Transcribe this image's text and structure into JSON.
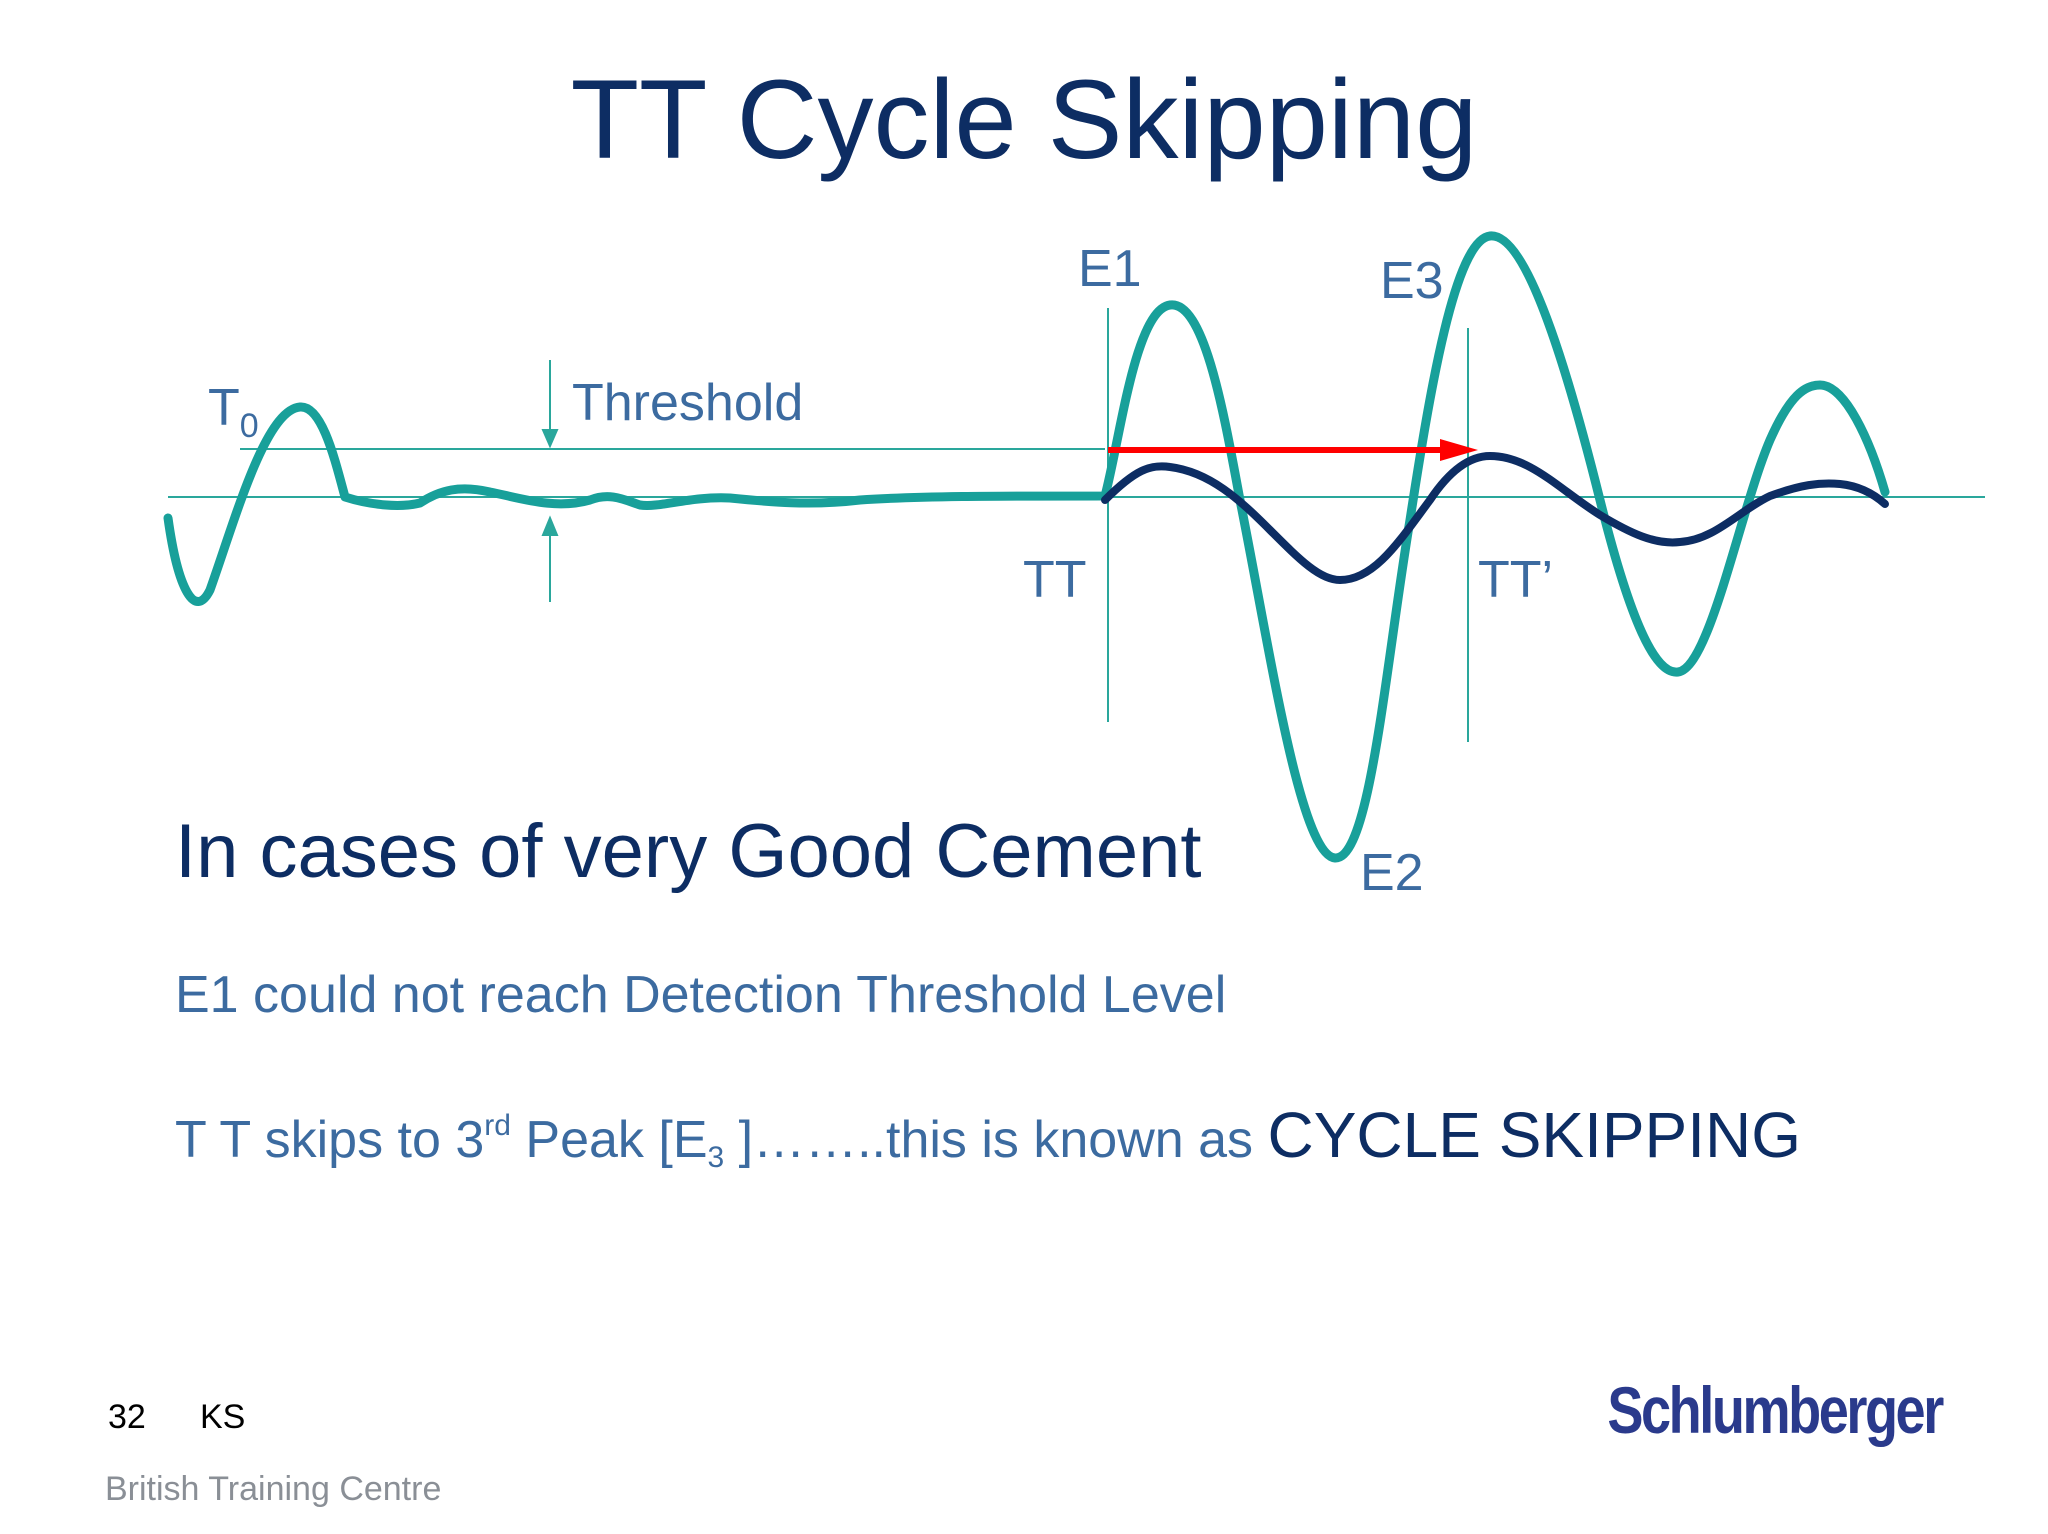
{
  "title": "TT Cycle Skipping",
  "diagram": {
    "labels": {
      "t0": "T",
      "t0_sub": "0",
      "threshold": "Threshold",
      "e1": "E1",
      "e2": "E2",
      "e3": "E3",
      "tt": "TT",
      "tt_prime": "TT’"
    },
    "colors": {
      "teal_wave": "#18a09a",
      "navy_wave": "#0d2d63",
      "arrow": "#ff0000",
      "guide": "#2aa79c",
      "label": "#3c6ba0"
    }
  },
  "body": {
    "heading": "In cases of very Good Cement",
    "line1": "E1 could not reach Detection Threshold Level",
    "line2_a": "T T skips to 3",
    "line2_sup": "rd",
    "line2_b": " Peak [E",
    "line2_sub": "3",
    "line2_c": " ]……..this is known as ",
    "line2_emph": "CYCLE SKIPPING"
  },
  "footer": {
    "page_number": "32",
    "author": "KS",
    "org": "British Training Centre",
    "logo": "Schlumberger"
  }
}
